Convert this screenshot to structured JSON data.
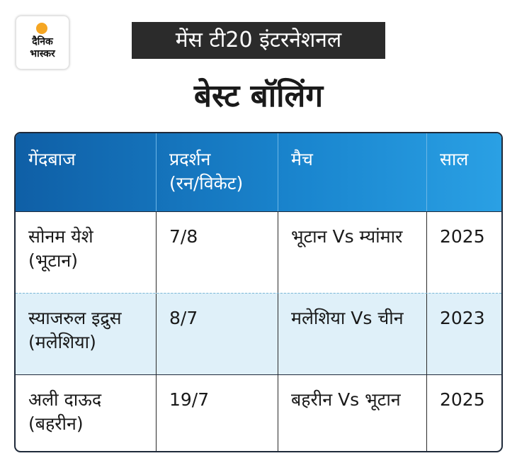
{
  "logo": {
    "line1": "दैनिक",
    "line2": "भास्कर"
  },
  "banner": "मेंस टी20 इंटरनेशनल",
  "heading": "बेस्ट बॉलिंग",
  "table": {
    "headers": [
      {
        "line1": "गेंदबाज",
        "line2": ""
      },
      {
        "line1": "प्रदर्शन",
        "line2": "(रन/विकेट)"
      },
      {
        "line1": "मैच",
        "line2": ""
      },
      {
        "line1": "साल",
        "line2": ""
      }
    ],
    "rows": [
      {
        "bowler": "सोनम येशे",
        "country": "(भूटान)",
        "figures": "7/8",
        "match": "भूटान Vs म्यांमार",
        "year": "2025"
      },
      {
        "bowler": "स्याजरुल इद्रुस",
        "country": "(मलेशिया)",
        "figures": "8/7",
        "match": "मलेशिया Vs चीन",
        "year": "2023"
      },
      {
        "bowler": "अली दाऊद",
        "country": "(बहरीन)",
        "figures": "19/7",
        "match": "बहरीन Vs भूटान",
        "year": "2025"
      }
    ]
  },
  "colors": {
    "header_blue": "#1a86cf",
    "alt_row": "#dff0f9",
    "banner_bg": "#2b2b2b",
    "logo_sun": "#f5a623"
  }
}
